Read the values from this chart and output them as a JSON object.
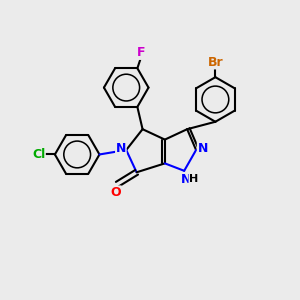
{
  "background_color": "#ebebeb",
  "bond_color": "#000000",
  "bond_width": 1.5,
  "atom_colors": {
    "N": "#0000ff",
    "O": "#ff0000",
    "F": "#cc00cc",
    "Cl": "#00aa00",
    "Br": "#cc6600",
    "H": "#000000",
    "C": "#000000"
  },
  "figsize": [
    3.0,
    3.0
  ],
  "dpi": 100
}
